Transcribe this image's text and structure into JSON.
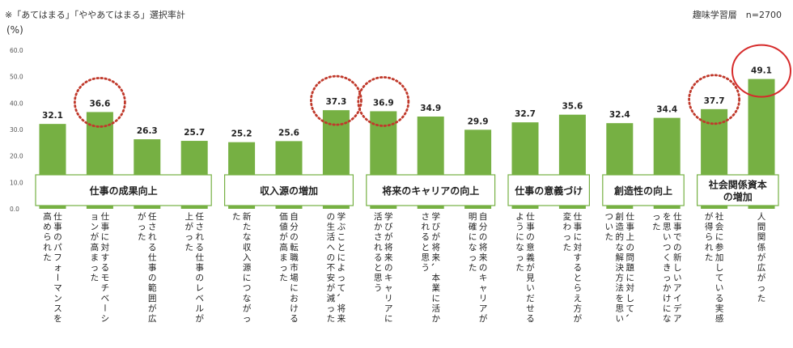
{
  "note": "※「あてはまる」「ややあてはまる」選択率計",
  "unit": "(%)",
  "sample": "趣味学習層　n=2700",
  "colors": {
    "bar": "#76b043",
    "circle_dotted": "#c0392b",
    "circle_solid": "#d62b2b",
    "group_border": "#76b043"
  },
  "chart_data": {
    "type": "bar",
    "ylim": [
      0,
      60
    ],
    "yticks": [
      "0.0",
      "10.0",
      "20.0",
      "30.0",
      "40.0",
      "50.0",
      "60.0"
    ],
    "grid": false,
    "categories": [
      "仕事のパフォーマンスを高められた",
      "仕事に対するモチベーションが高まった",
      "任される仕事の範囲が広がった",
      "任される仕事のレベルが上がった",
      "新たな収入源につながった",
      "自分の転職市場における価値が高まった",
      "学ぶことによって、将来の生活への不安が減った",
      "学びが将来のキャリアに活かされると思う",
      "学びが将来、本業に活かされると思う",
      "自分の将来のキャリアが明確になった",
      "仕事の意義が見いだせるようになった",
      "仕事に対するとらえ方が変わった",
      "仕事上の問題に対して、創造的な解決方法を思いついた",
      "仕事での新しいアイデアを思いつくきっかけになった",
      "社会に参加している実感が得られた",
      "人間関係が広がった"
    ],
    "values": [
      32.1,
      36.6,
      26.3,
      25.7,
      25.2,
      25.6,
      37.3,
      36.9,
      34.9,
      29.9,
      32.7,
      35.6,
      32.4,
      34.4,
      37.7,
      49.1
    ],
    "value_labels": [
      "32.1",
      "36.6",
      "26.3",
      "25.7",
      "25.2",
      "25.6",
      "37.3",
      "36.9",
      "34.9",
      "29.9",
      "32.7",
      "35.6",
      "32.4",
      "34.4",
      "37.7",
      "49.1"
    ],
    "highlight_dotted": [
      1,
      6,
      7,
      14
    ],
    "highlight_solid": [
      15
    ],
    "groups": [
      {
        "label": [
          "仕事の成果向上"
        ],
        "start": 0,
        "end": 3
      },
      {
        "label": [
          "収入源の増加"
        ],
        "start": 4,
        "end": 6
      },
      {
        "label": [
          "将来のキャリアの向上"
        ],
        "start": 7,
        "end": 9
      },
      {
        "label": [
          "仕事の意義づけ"
        ],
        "start": 10,
        "end": 11
      },
      {
        "label": [
          "創造性の向上"
        ],
        "start": 12,
        "end": 13
      },
      {
        "label": [
          "社会関係資本",
          "の増加"
        ],
        "start": 14,
        "end": 15
      }
    ]
  }
}
